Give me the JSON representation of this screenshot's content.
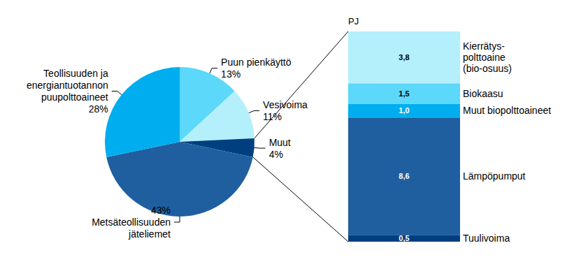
{
  "chart_data": [
    {
      "type": "pie",
      "categories": [
        "Puun pienkäyttö",
        "Vesivoima",
        "Muut",
        "Metsäteollisuuden\njäteliemet",
        "Teollisuuden ja\nenergiantuotannon\npuupolttoaineet"
      ],
      "values": [
        13,
        11,
        4,
        43,
        28
      ],
      "value_labels": [
        "13%",
        "11%",
        "4%",
        "43%",
        "28%"
      ],
      "colors": [
        "#5bd8fa",
        "#b3f0fc",
        "#003f7f",
        "#1f5fa0",
        "#00aeef"
      ],
      "data_labels": true
    },
    {
      "type": "bar",
      "stacked": true,
      "ylabel": "PJ",
      "categories": [
        null
      ],
      "series": [
        {
          "name": "Tuulivoima",
          "color": "#003f7f",
          "values": [
            0.5
          ],
          "value_labels": [
            "0,5"
          ]
        },
        {
          "name": "Lämpöpumput",
          "color": "#1f5fa0",
          "values": [
            8.6
          ],
          "value_labels": [
            "8,6"
          ]
        },
        {
          "name": "Muut biopolttoaineet",
          "color": "#00aeef",
          "values": [
            1.0
          ],
          "value_labels": [
            "1,0"
          ]
        },
        {
          "name": "Biokaasu",
          "color": "#5bd8fa",
          "values": [
            1.5
          ],
          "value_labels": [
            "1,5"
          ]
        },
        {
          "name": "Kierrätys-\npolttoaine\n(bio-osuus)",
          "color": "#b3f0fc",
          "values": [
            3.8
          ],
          "value_labels": [
            "3,8"
          ]
        }
      ],
      "ylim": [
        0,
        15.4
      ],
      "yticks": [],
      "tick_labels": false,
      "data_labels": true
    }
  ]
}
